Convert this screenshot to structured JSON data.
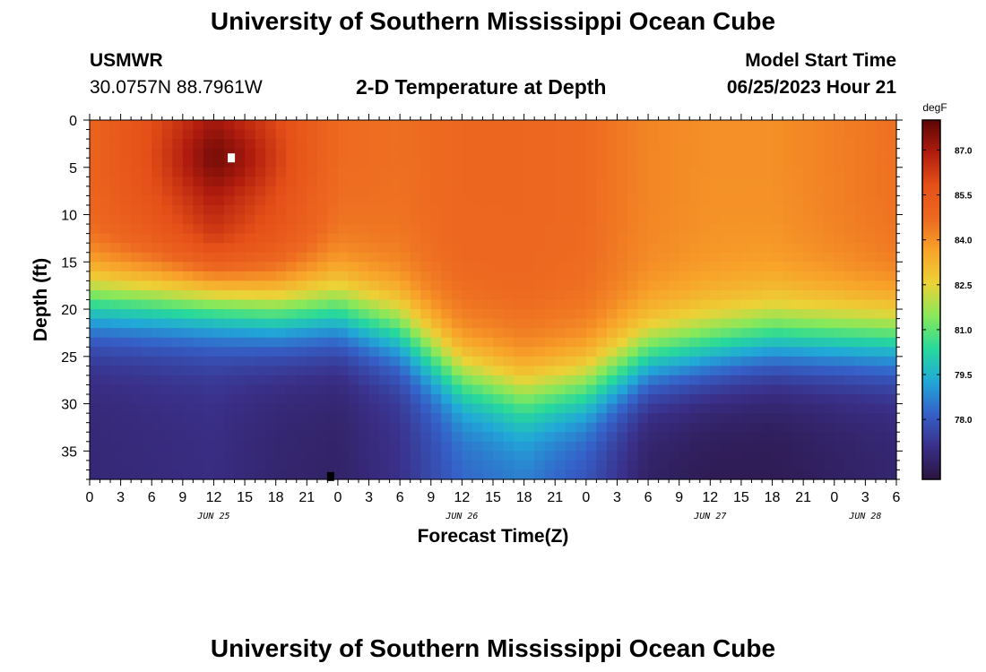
{
  "page": {
    "title": "University of Southern Mississippi Ocean Cube",
    "footer_title": "University of Southern Mississippi Ocean Cube"
  },
  "header": {
    "station": "USMWR",
    "coords": "30.0757N  88.7961W",
    "plot_title": "2-D Temperature at Depth",
    "model_start_label": "Model Start Time",
    "model_start_value": "06/25/2023 Hour 21"
  },
  "colors": {
    "scale": [
      "#2a1440",
      "#3a2f88",
      "#3560c8",
      "#21a8d8",
      "#27d99b",
      "#88e85a",
      "#ecd236",
      "#f8a42a",
      "#ed6820",
      "#e55018",
      "#b01c0e",
      "#5c0606"
    ]
  },
  "chart_data": {
    "type": "heatmap",
    "title": "2-D Temperature at Depth",
    "xlabel": "Forecast Time(Z)",
    "ylabel": "Depth (ft)",
    "xlim_hours": [
      0,
      78
    ],
    "ylim_ft": [
      0,
      38
    ],
    "y_reversed": true,
    "x_ticks": [
      {
        "hour": 0,
        "label": "0"
      },
      {
        "hour": 3,
        "label": "3"
      },
      {
        "hour": 6,
        "label": "6"
      },
      {
        "hour": 9,
        "label": "9"
      },
      {
        "hour": 12,
        "label": "12"
      },
      {
        "hour": 15,
        "label": "15"
      },
      {
        "hour": 18,
        "label": "18"
      },
      {
        "hour": 21,
        "label": "21"
      },
      {
        "hour": 24,
        "label": "0"
      },
      {
        "hour": 27,
        "label": "3"
      },
      {
        "hour": 30,
        "label": "6"
      },
      {
        "hour": 33,
        "label": "9"
      },
      {
        "hour": 36,
        "label": "12"
      },
      {
        "hour": 39,
        "label": "15"
      },
      {
        "hour": 42,
        "label": "18"
      },
      {
        "hour": 45,
        "label": "21"
      },
      {
        "hour": 48,
        "label": "0"
      },
      {
        "hour": 51,
        "label": "3"
      },
      {
        "hour": 54,
        "label": "6"
      },
      {
        "hour": 57,
        "label": "9"
      },
      {
        "hour": 60,
        "label": "12"
      },
      {
        "hour": 63,
        "label": "15"
      },
      {
        "hour": 66,
        "label": "18"
      },
      {
        "hour": 69,
        "label": "21"
      },
      {
        "hour": 72,
        "label": "0"
      },
      {
        "hour": 75,
        "label": "3"
      },
      {
        "hour": 78,
        "label": "6"
      }
    ],
    "date_labels": [
      {
        "hour": 12,
        "label": "JUN 25"
      },
      {
        "hour": 36,
        "label": "JUN 26"
      },
      {
        "hour": 60,
        "label": "JUN 27"
      },
      {
        "hour": 75,
        "label": "JUN 28"
      }
    ],
    "y_ticks": [
      0,
      5,
      10,
      15,
      20,
      25,
      30,
      35
    ],
    "colorbar": {
      "unit": "degF",
      "min": 76.0,
      "max": 88.0,
      "tick_values": [
        87.0,
        85.5,
        84.0,
        82.5,
        81.0,
        79.5,
        78.0
      ],
      "tick_labels": [
        "87.0",
        "85.5",
        "84.0",
        "82.5",
        "81.0",
        "79.5",
        "78.0"
      ]
    },
    "field_keypoints": {
      "description_hours": "surface and bottom temps and thermocline depth vs forecast hour",
      "hours": [
        0,
        6,
        12,
        18,
        24,
        30,
        36,
        42,
        48,
        54,
        60,
        66,
        72,
        78
      ],
      "surface_degF": [
        85.0,
        85.8,
        86.9,
        85.9,
        84.7,
        84.6,
        84.8,
        84.8,
        84.7,
        84.2,
        84.0,
        84.0,
        84.3,
        84.6
      ],
      "thermocline_ft": [
        19,
        19,
        19,
        20,
        20,
        22,
        27,
        29,
        28,
        25,
        24,
        23,
        23,
        23
      ],
      "bottom_degF": [
        76.8,
        76.9,
        77.0,
        76.7,
        76.6,
        77.1,
        78.2,
        78.5,
        77.8,
        76.5,
        76.3,
        76.3,
        76.5,
        76.7
      ]
    },
    "markers": [
      {
        "hour": 13.7,
        "depth_ft": 4.0,
        "color": "#ffffff"
      },
      {
        "hour": 23.3,
        "depth_ft": 37.7,
        "color": "#000000"
      }
    ]
  }
}
